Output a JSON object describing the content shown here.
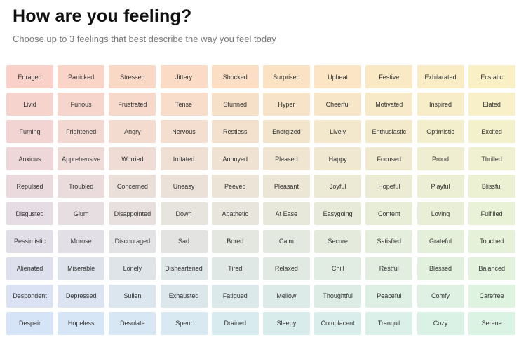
{
  "header": {
    "title": "How are you feeling?",
    "subtitle": "Choose up to 3 feelings that best describe the way you feel today"
  },
  "feelings": [
    [
      "Enraged",
      "Panicked",
      "Stressed",
      "Jittery",
      "Shocked",
      "Surprised",
      "Upbeat",
      "Festive",
      "Exhilarated",
      "Ecstatic"
    ],
    [
      "Livid",
      "Furious",
      "Frustrated",
      "Tense",
      "Stunned",
      "Hyper",
      "Cheerful",
      "Motivated",
      "Inspired",
      "Elated"
    ],
    [
      "Fuming",
      "Frightened",
      "Angry",
      "Nervous",
      "Restless",
      "Energized",
      "Lively",
      "Enthusiastic",
      "Optimistic",
      "Excited"
    ],
    [
      "Anxious",
      "Apprehensive",
      "Worried",
      "Irritated",
      "Annoyed",
      "Pleased",
      "Happy",
      "Focused",
      "Proud",
      "Thrilled"
    ],
    [
      "Repulsed",
      "Troubled",
      "Concerned",
      "Uneasy",
      "Peeved",
      "Pleasant",
      "Joyful",
      "Hopeful",
      "Playful",
      "Blissful"
    ],
    [
      "Disgusted",
      "Glum",
      "Disappointed",
      "Down",
      "Apathetic",
      "At Ease",
      "Easygoing",
      "Content",
      "Loving",
      "Fulfilled"
    ],
    [
      "Pessimistic",
      "Morose",
      "Discouraged",
      "Sad",
      "Bored",
      "Calm",
      "Secure",
      "Satisfied",
      "Grateful",
      "Touched"
    ],
    [
      "Alienated",
      "Miserable",
      "Lonely",
      "Disheartened",
      "Tired",
      "Relaxed",
      "Chill",
      "Restful",
      "Blessed",
      "Balanced"
    ],
    [
      "Despondent",
      "Depressed",
      "Sullen",
      "Exhausted",
      "Fatigued",
      "Mellow",
      "Thoughtful",
      "Peaceful",
      "Comfy",
      "Carefree"
    ],
    [
      "Despair",
      "Hopeless",
      "Desolate",
      "Spent",
      "Drained",
      "Sleepy",
      "Complacent",
      "Tranquil",
      "Cozy",
      "Serene"
    ]
  ],
  "colors": {
    "red": "#fad1c8",
    "orange": "#fbe0c3",
    "yellow": "#faf0c6",
    "blue": "#d6e4f8",
    "green": "#dbf3e3"
  }
}
